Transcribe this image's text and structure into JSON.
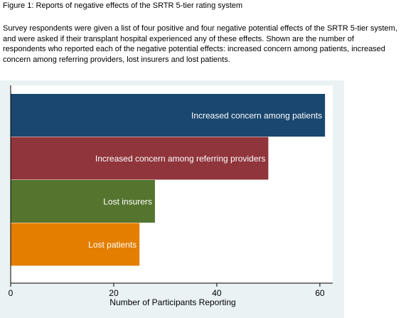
{
  "figure": {
    "title": "Figure 1: Reports of negative effects of the SRTR 5-tier rating system",
    "caption": "Survey respondents were given a list of four positive and four negative potential effects of the SRTR 5-tier system, and were asked if their transplant hospital experienced any of these effects. Shown are the number of respondents who reported each of the negative potential effects: increased concern among patients, increased concern among referring providers, lost insurers and lost patients."
  },
  "chart_data": {
    "type": "bar",
    "orientation": "horizontal",
    "categories": [
      "Increased concern among patients",
      "Increased concern among referring providers",
      "Lost insurers",
      "Lost patients"
    ],
    "values": [
      61,
      50,
      28,
      25
    ],
    "colors": [
      "#1a476f",
      "#90353b",
      "#55752f",
      "#e37e00"
    ],
    "xlabel": "Number of Participants Reporting",
    "ylabel": "",
    "xticks": [
      0,
      20,
      40,
      60
    ],
    "xlim": [
      0,
      62.5
    ],
    "grid": false,
    "legend": "none",
    "background": "#eaf2f3",
    "labels_inside_bars": true,
    "label_color": "#ffffff"
  }
}
